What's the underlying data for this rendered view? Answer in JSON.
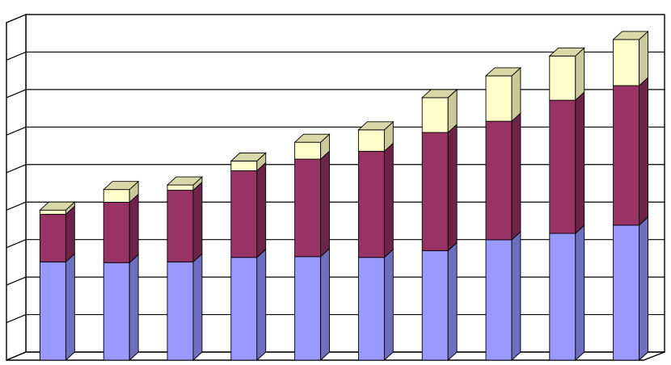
{
  "chart_data": {
    "type": "bar",
    "stacked": true,
    "three_d": true,
    "title": "",
    "xlabel": "",
    "ylabel": "",
    "ylim": [
      0,
      9
    ],
    "grid": true,
    "legend": "none",
    "categories": [
      "",
      "",
      "",
      "",
      "",
      "",
      "",
      "",
      "",
      ""
    ],
    "series": [
      {
        "color": "#9999ff",
        "side_color": "#6f6fbf",
        "top_color": "#b3b3ff",
        "values": [
          2.62,
          2.6,
          2.62,
          2.74,
          2.76,
          2.74,
          2.92,
          3.21,
          3.38,
          3.6
        ]
      },
      {
        "color": "#993366",
        "side_color": "#6e2448",
        "top_color": "#b35c86",
        "values": [
          1.27,
          1.61,
          1.91,
          2.31,
          2.6,
          2.83,
          3.15,
          3.16,
          3.55,
          3.72
        ]
      },
      {
        "color": "#ffffcc",
        "side_color": "#c9c99a",
        "top_color": "#d8d8a8",
        "values": [
          0.11,
          0.34,
          0.14,
          0.26,
          0.45,
          0.57,
          0.93,
          1.21,
          1.18,
          1.23
        ]
      }
    ]
  }
}
